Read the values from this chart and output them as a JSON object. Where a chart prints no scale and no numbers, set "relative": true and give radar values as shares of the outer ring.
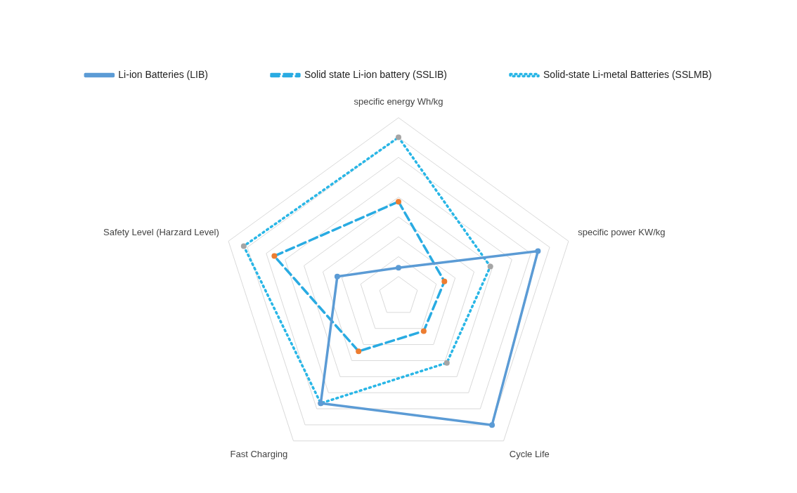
{
  "chart_data": {
    "type": "radar",
    "relative": true,
    "legend": "top",
    "marker": "circle",
    "grid": true,
    "categories": [
      "specific energy Wh/kg",
      "specific power KW/kg",
      "Cycle Life",
      "Fast Charging",
      "Safety Level (Harzard Level)"
    ],
    "series": [
      {
        "name": "Li-ion Batteries (LIB)",
        "color": "#5b9bd5",
        "line_style": "solid",
        "values": [
          0.16,
          0.82,
          0.89,
          0.74,
          0.36
        ]
      },
      {
        "name": "Solid state Li-ion battery (SSLIB)",
        "color": "#29abe2",
        "colors": [
          "#ed7d31",
          "#ed7d31",
          "#ed7d31",
          "#ed7d31",
          "#ed7d31"
        ],
        "line_style": "dashed",
        "values": [
          0.53,
          0.27,
          0.24,
          0.38,
          0.73
        ]
      },
      {
        "name": "Solid-state Li-metal Batteries (SSLMB)",
        "color": "#29b6e6",
        "colors": [
          "#a5a5a5",
          "#a5a5a5",
          "#a5a5a5",
          "#a5a5a5",
          "#a5a5a5"
        ],
        "line_style": "dotted",
        "values": [
          0.89,
          0.54,
          0.46,
          0.74,
          0.91
        ]
      }
    ]
  }
}
